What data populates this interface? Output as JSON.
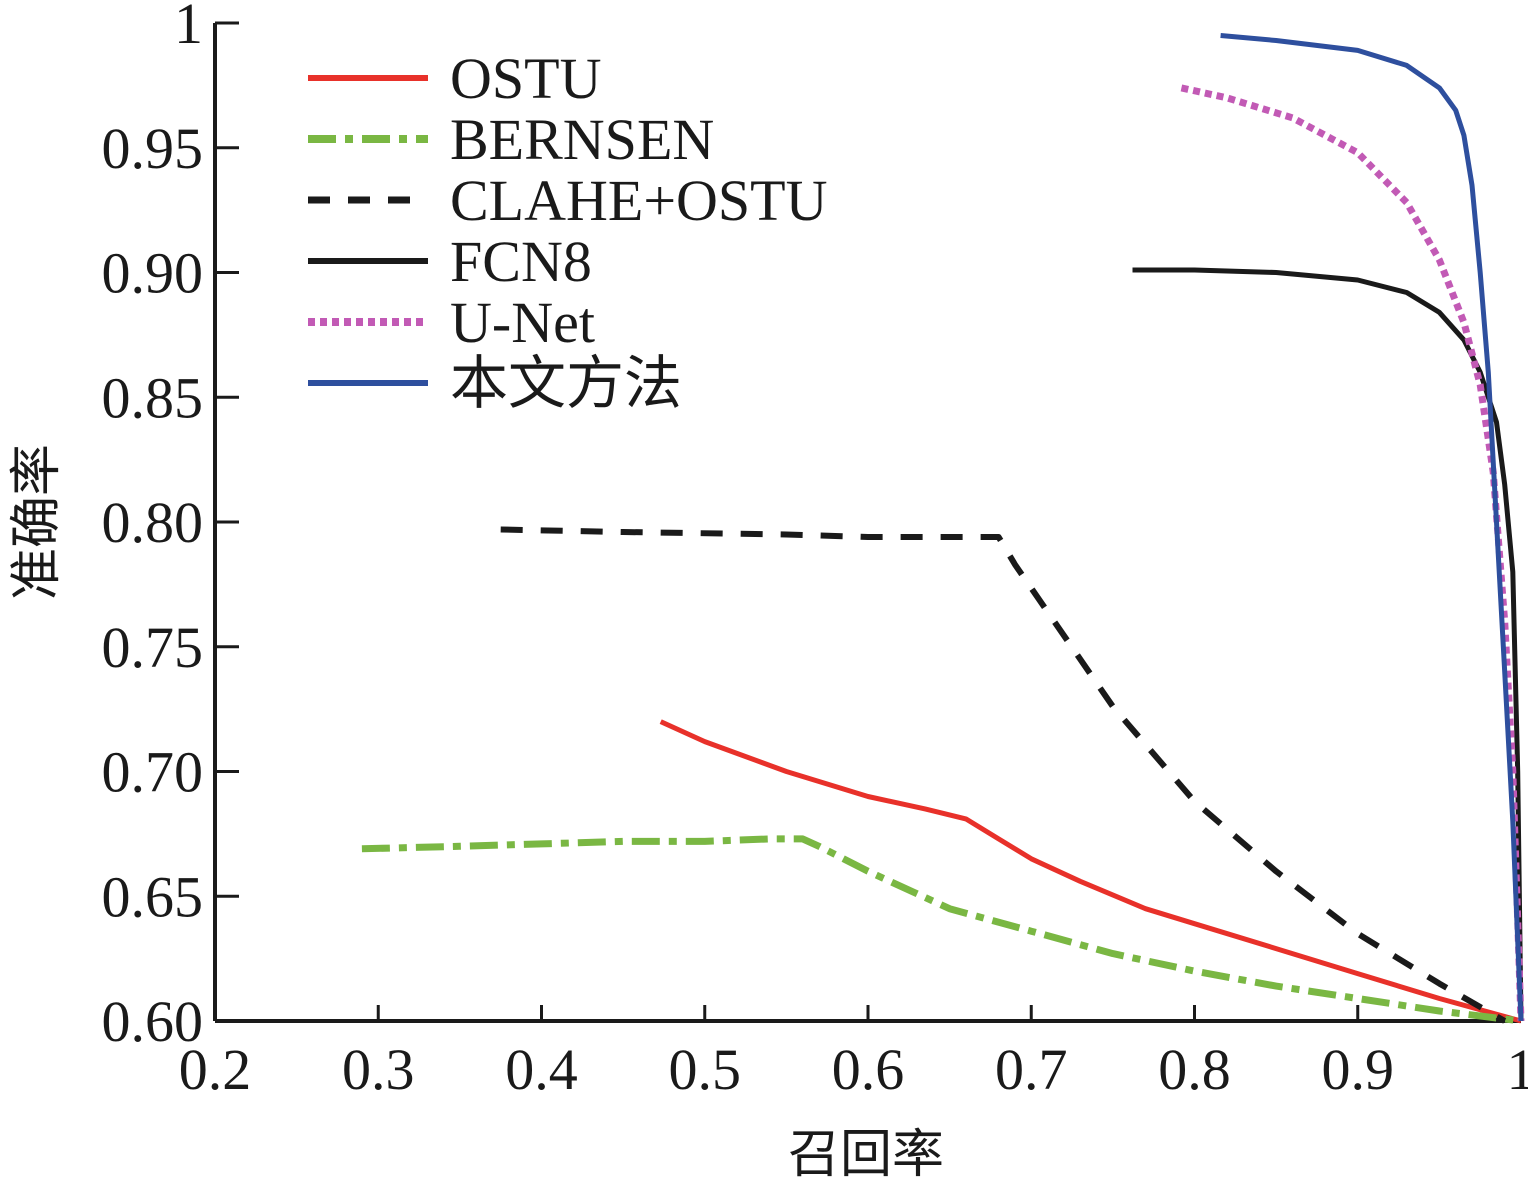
{
  "chart_data": {
    "type": "line",
    "title": "",
    "xlabel": "召回率",
    "ylabel": "准确率",
    "xlim": [
      0.2,
      1.0
    ],
    "ylim": [
      0.6,
      1.0
    ],
    "xticks": [
      0.2,
      0.3,
      0.4,
      0.5,
      0.6,
      0.7,
      0.8,
      0.9,
      1.0
    ],
    "xtick_labels": [
      "0.2",
      "0.3",
      "0.4",
      "0.5",
      "0.6",
      "0.7",
      "0.8",
      "0.9",
      "1"
    ],
    "yticks": [
      0.6,
      0.65,
      0.7,
      0.75,
      0.8,
      0.85,
      0.9,
      0.95,
      1.0
    ],
    "ytick_labels": [
      "0.60",
      "0.65",
      "0.70",
      "0.75",
      "0.80",
      "0.85",
      "0.90",
      "0.95",
      "1"
    ],
    "grid": false,
    "legend_position": "top-left",
    "series": [
      {
        "name": "OSTU",
        "color": "#e8312a",
        "style": "solid",
        "x": [
          0.473,
          0.5,
          0.55,
          0.6,
          0.635,
          0.66,
          0.68,
          0.7,
          0.73,
          0.77,
          0.8,
          0.85,
          0.9,
          0.95,
          1.0
        ],
        "y": [
          0.72,
          0.712,
          0.7,
          0.69,
          0.685,
          0.681,
          0.673,
          0.665,
          0.656,
          0.645,
          0.639,
          0.629,
          0.619,
          0.609,
          0.6
        ]
      },
      {
        "name": "BERNSEN",
        "color": "#7ab743",
        "style": "dashdot",
        "x": [
          0.29,
          0.35,
          0.4,
          0.45,
          0.5,
          0.54,
          0.56,
          0.57,
          0.6,
          0.65,
          0.7,
          0.75,
          0.8,
          0.85,
          0.9,
          0.95,
          1.0
        ],
        "y": [
          0.669,
          0.67,
          0.671,
          0.672,
          0.672,
          0.673,
          0.673,
          0.67,
          0.66,
          0.645,
          0.636,
          0.627,
          0.62,
          0.614,
          0.609,
          0.604,
          0.6
        ]
      },
      {
        "name": "CLAHE+OSTU",
        "color": "#1a1a1a",
        "style": "dashed",
        "x": [
          0.375,
          0.45,
          0.55,
          0.6,
          0.68,
          0.69,
          0.75,
          0.8,
          0.85,
          0.9,
          0.95,
          0.99
        ],
        "y": [
          0.797,
          0.796,
          0.795,
          0.794,
          0.794,
          0.783,
          0.726,
          0.688,
          0.66,
          0.635,
          0.615,
          0.6
        ]
      },
      {
        "name": "FCN8",
        "color": "#1a1a1a",
        "style": "solid",
        "x": [
          0.762,
          0.8,
          0.85,
          0.9,
          0.93,
          0.95,
          0.965,
          0.975,
          0.985,
          0.99,
          0.995,
          0.998,
          1.0
        ],
        "y": [
          0.901,
          0.901,
          0.9,
          0.897,
          0.892,
          0.884,
          0.873,
          0.86,
          0.84,
          0.815,
          0.78,
          0.7,
          0.6
        ]
      },
      {
        "name": "U-Net",
        "color": "#c25ab5",
        "style": "dotted",
        "x": [
          0.792,
          0.82,
          0.86,
          0.9,
          0.93,
          0.95,
          0.965,
          0.975,
          0.983,
          0.99,
          0.995,
          1.0
        ],
        "y": [
          0.974,
          0.97,
          0.962,
          0.948,
          0.928,
          0.905,
          0.88,
          0.855,
          0.82,
          0.76,
          0.7,
          0.6
        ]
      },
      {
        "name": "本文方法",
        "color": "#2e4f9e",
        "style": "solid",
        "x": [
          0.816,
          0.85,
          0.9,
          0.93,
          0.95,
          0.96,
          0.965,
          0.97,
          0.975,
          0.98,
          0.985,
          0.99,
          0.995,
          1.0
        ],
        "y": [
          0.995,
          0.993,
          0.989,
          0.983,
          0.974,
          0.965,
          0.955,
          0.935,
          0.9,
          0.86,
          0.8,
          0.74,
          0.68,
          0.6
        ]
      }
    ]
  }
}
